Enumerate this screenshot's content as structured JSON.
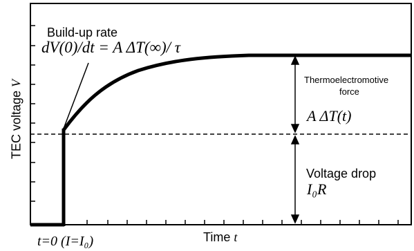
{
  "labels": {
    "buildup_title": "Build-up rate",
    "buildup_formula": "dV(0)/dt = A ΔT(∞)/ τ",
    "thermo_line1": "Thermoelectromotive",
    "thermo_line2": "force",
    "thermo_formula": "A ΔT(t)",
    "drop_title": "Voltage drop",
    "drop_formula": "I₀R",
    "y_axis_text": "TEC voltage ",
    "y_axis_var": "V",
    "x_axis_text": "Time ",
    "x_axis_var": "t",
    "t0_label": "t=0 (I=I₀)"
  },
  "colors": {
    "curve": "#000000",
    "axes": "#000000",
    "dashed": "#000000"
  }
}
